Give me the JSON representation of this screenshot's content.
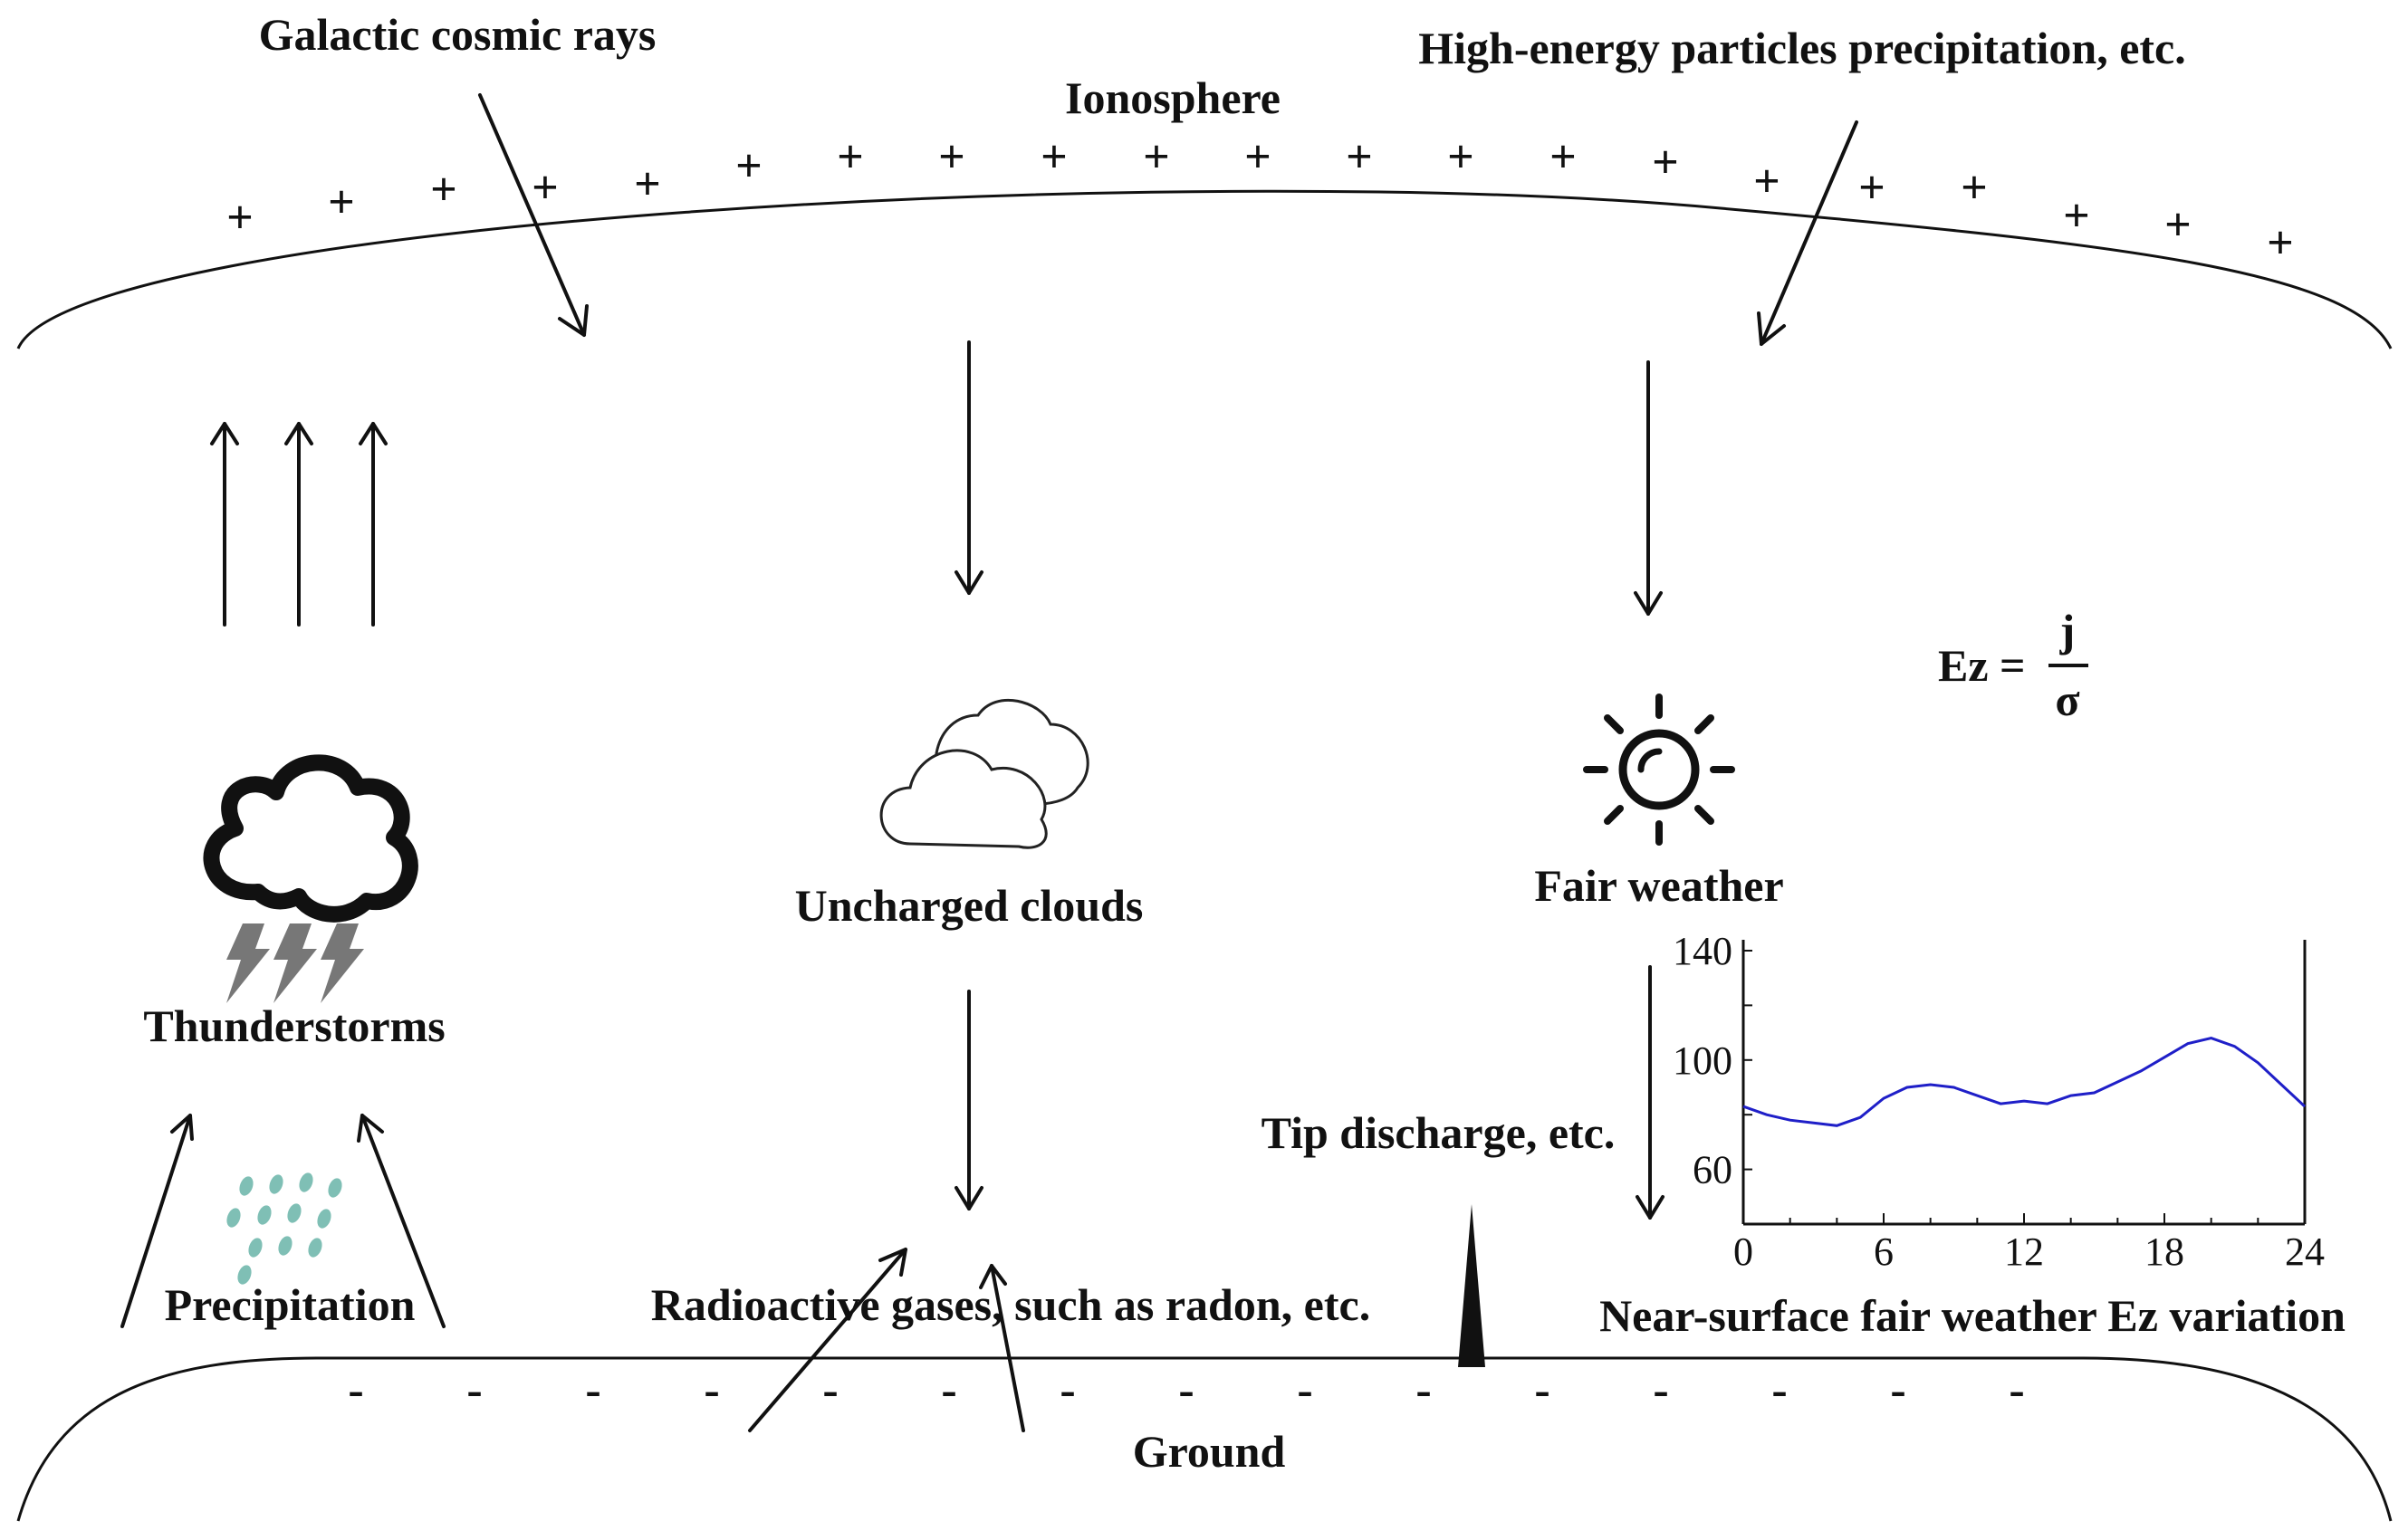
{
  "labels": {
    "ionosphere": "Ionosphere",
    "galactic_cosmic_rays": "Galactic cosmic rays",
    "high_energy": "High-energy particles precipitation, etc.",
    "thunderstorms": "Thunderstorms",
    "precipitation": "Precipitation",
    "uncharged_clouds": "Uncharged clouds",
    "fair_weather": "Fair weather",
    "radioactive_gases": "Radioactive gases, such as radon, etc.",
    "tip_discharge": "Tip discharge, etc.",
    "ground": "Ground",
    "chart_caption": "Near-surface fair weather Ez variation"
  },
  "equation": {
    "lhs": "Ez =",
    "numerator": "j",
    "denominator": "σ"
  },
  "signs": {
    "positive": "+",
    "negative": "-"
  },
  "icons": {
    "thunderstorm": "thunderstorm-cloud-icon",
    "rain": "rain-drops-icon",
    "cloud": "cloud-icon",
    "sun": "sun-icon",
    "tip": "tip-spike-icon"
  },
  "colors": {
    "line": "#1f1fc8",
    "lightning": "#777777",
    "rain": "#7fbfb5",
    "ink": "#111111"
  },
  "chart_data": {
    "type": "line",
    "title": "Near-surface fair weather Ez variation",
    "xlabel": "",
    "ylabel": "",
    "xlim": [
      0,
      24
    ],
    "ylim": [
      40,
      140
    ],
    "xticks": [
      0,
      6,
      12,
      18,
      24
    ],
    "yticks": [
      60,
      100,
      140
    ],
    "grid": false,
    "series": [
      {
        "name": "Ez",
        "x": [
          0,
          1,
          2,
          3,
          4,
          5,
          6,
          7,
          8,
          9,
          10,
          11,
          12,
          13,
          14,
          15,
          16,
          17,
          18,
          19,
          20,
          21,
          22,
          23,
          24
        ],
        "values": [
          83,
          80,
          78,
          77,
          76,
          79,
          86,
          90,
          91,
          90,
          87,
          84,
          85,
          84,
          87,
          88,
          92,
          96,
          101,
          106,
          108,
          105,
          99,
          91,
          83
        ]
      }
    ]
  }
}
